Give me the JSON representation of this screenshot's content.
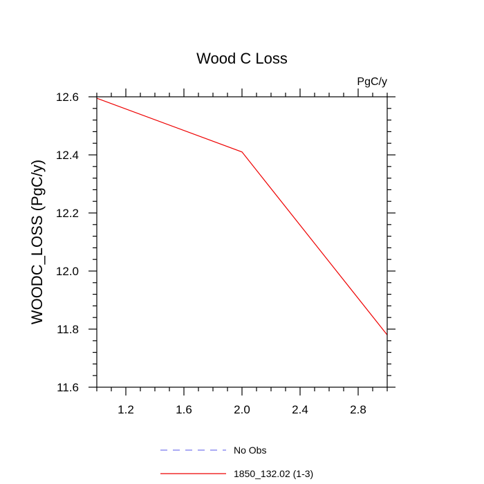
{
  "chart_data": {
    "type": "line",
    "title": "Wood C Loss",
    "units_label": "PgC/y",
    "ylabel": "WOODC_LOSS  (PgC/y)",
    "xlabel": "",
    "xlim": [
      1.0,
      3.0
    ],
    "ylim": [
      11.6,
      12.6
    ],
    "x_ticks": [
      1.2,
      1.6,
      2.0,
      2.4,
      2.8
    ],
    "x_tick_labels": [
      "1.2",
      "1.6",
      "2.0",
      "2.4",
      "2.8"
    ],
    "y_ticks": [
      11.6,
      11.8,
      12.0,
      12.2,
      12.4,
      12.6
    ],
    "y_tick_labels": [
      "11.6",
      "11.8",
      "12.0",
      "12.2",
      "12.4",
      "12.6"
    ],
    "x_minor_step": 0.1,
    "y_minor_step": 0.04,
    "grid": false,
    "legend_position": "bottom-center",
    "legend": [
      {
        "label": "No Obs",
        "color": "#7777ee",
        "style": "dashed"
      },
      {
        "label": "1850_132.02 (1-3)",
        "color": "#ee0000",
        "style": "solid"
      }
    ],
    "series": [
      {
        "name": "1850_132.02 (1-3)",
        "color": "#ee0000",
        "x": [
          1.0,
          2.0,
          3.0
        ],
        "values": [
          12.595,
          12.41,
          11.78
        ]
      }
    ]
  }
}
